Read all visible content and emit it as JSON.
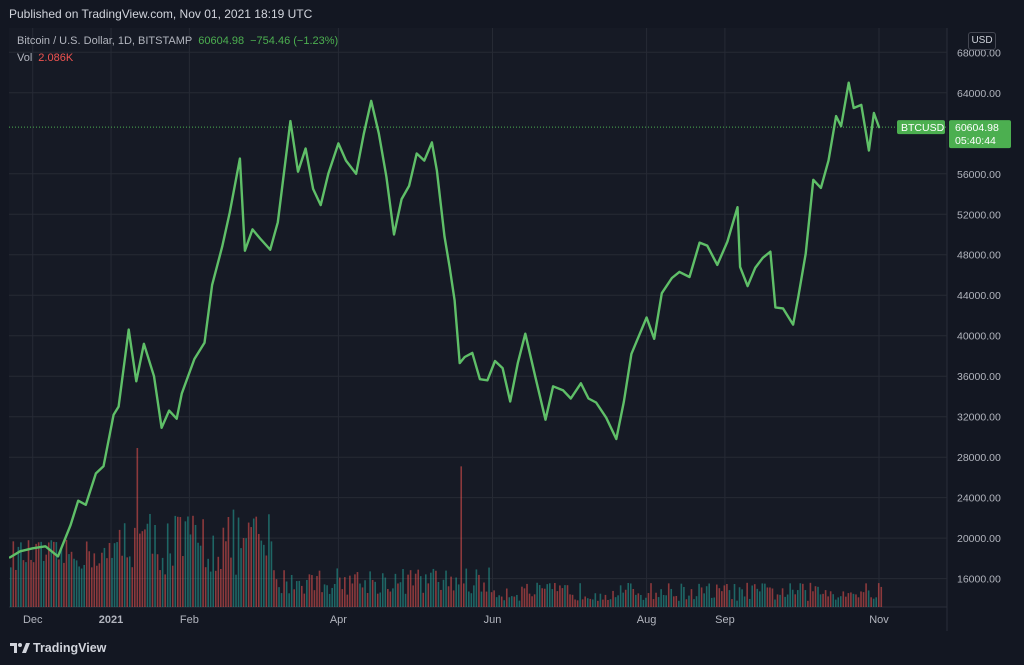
{
  "header": {
    "published": "Published on TradingView.com, Nov 01, 2021 18:19 UTC"
  },
  "legend": {
    "symbol": "Bitcoin / U.S. Dollar, 1D, BITSTAMP",
    "price": "60604.98",
    "change": "−754.46 (−1.23%)",
    "vol_label": "Vol",
    "vol_value": "2.086K"
  },
  "currency_button": "USD",
  "price_tag": {
    "symbol": "BTCUSD",
    "value": "60604.98",
    "countdown": "05:40:44"
  },
  "footer": {
    "brand": "TradingView"
  },
  "colors": {
    "line": "#5fbf68",
    "background": "#161a25",
    "grid": "#262a35",
    "up_volume": "#26a69a",
    "down_volume": "#ef5350",
    "last_price": "#4caf50"
  },
  "chart_data": {
    "type": "line",
    "series": [
      {
        "name": "BTCUSD",
        "x": [
          "2020-11-22",
          "2020-11-26",
          "2020-12-01",
          "2020-12-06",
          "2020-12-11",
          "2020-12-16",
          "2020-12-19",
          "2020-12-22",
          "2020-12-26",
          "2020-12-29",
          "2021-01-02",
          "2021-01-04",
          "2021-01-08",
          "2021-01-11",
          "2021-01-14",
          "2021-01-18",
          "2021-01-21",
          "2021-01-24",
          "2021-01-27",
          "2021-01-29",
          "2021-02-03",
          "2021-02-07",
          "2021-02-10",
          "2021-02-14",
          "2021-02-17",
          "2021-02-21",
          "2021-02-23",
          "2021-02-26",
          "2021-03-01",
          "2021-03-05",
          "2021-03-08",
          "2021-03-13",
          "2021-03-16",
          "2021-03-19",
          "2021-03-22",
          "2021-03-25",
          "2021-03-28",
          "2021-04-01",
          "2021-04-04",
          "2021-04-08",
          "2021-04-11",
          "2021-04-14",
          "2021-04-17",
          "2021-04-20",
          "2021-04-23",
          "2021-04-26",
          "2021-04-29",
          "2021-05-02",
          "2021-05-05",
          "2021-05-08",
          "2021-05-10",
          "2021-05-13",
          "2021-05-15",
          "2021-05-17",
          "2021-05-19",
          "2021-05-21",
          "2021-05-24",
          "2021-05-27",
          "2021-05-30",
          "2021-06-02",
          "2021-06-05",
          "2021-06-08",
          "2021-06-11",
          "2021-06-14",
          "2021-06-18",
          "2021-06-22",
          "2021-06-25",
          "2021-06-29",
          "2021-07-02",
          "2021-07-06",
          "2021-07-09",
          "2021-07-12",
          "2021-07-16",
          "2021-07-20",
          "2021-07-23",
          "2021-07-26",
          "2021-07-29",
          "2021-08-01",
          "2021-08-04",
          "2021-08-07",
          "2021-08-11",
          "2021-08-14",
          "2021-08-18",
          "2021-08-22",
          "2021-08-25",
          "2021-08-29",
          "2021-09-02",
          "2021-09-06",
          "2021-09-07",
          "2021-09-10",
          "2021-09-13",
          "2021-09-16",
          "2021-09-19",
          "2021-09-21",
          "2021-09-24",
          "2021-09-28",
          "2021-09-30",
          "2021-10-03",
          "2021-10-06",
          "2021-10-09",
          "2021-10-12",
          "2021-10-15",
          "2021-10-17",
          "2021-10-20",
          "2021-10-22",
          "2021-10-25",
          "2021-10-28",
          "2021-10-30",
          "2021-11-01"
        ],
        "y": [
          18100,
          18700,
          19000,
          19200,
          18200,
          21300,
          23700,
          23300,
          26400,
          27100,
          32200,
          33000,
          40600,
          35500,
          39200,
          36000,
          30900,
          32600,
          31800,
          34300,
          37700,
          39300,
          45000,
          48800,
          52200,
          57500,
          48400,
          50500,
          49600,
          48500,
          51200,
          61200,
          56200,
          58500,
          54500,
          52900,
          56000,
          59000,
          57300,
          56000,
          59900,
          63200,
          60000,
          55700,
          50000,
          53500,
          54800,
          58000,
          57300,
          59100,
          56300,
          49800,
          46800,
          43500,
          37300,
          37900,
          38300,
          35700,
          35600,
          37500,
          36800,
          33500,
          37300,
          40200,
          35900,
          31700,
          35000,
          34600,
          33800,
          35300,
          33800,
          33400,
          31900,
          29800,
          33500,
          38200,
          40000,
          41800,
          39700,
          44200,
          45700,
          46300,
          45800,
          49200,
          48900,
          47000,
          49300,
          52700,
          46800,
          44900,
          46700,
          47700,
          48300,
          42800,
          42700,
          41100,
          43800,
          48100,
          55400,
          54600,
          57300,
          61700,
          60700,
          65000,
          62500,
          62800,
          58300,
          62000,
          60605
        ]
      }
    ],
    "xaxis_labels": [
      "Dec",
      "2021",
      "Feb",
      "Apr",
      "Jun",
      "Aug",
      "Sep",
      "Nov"
    ],
    "yaxis_labels": [
      "68000.00",
      "64000.00",
      "56000.00",
      "52000.00",
      "48000.00",
      "44000.00",
      "40000.00",
      "36000.00",
      "32000.00",
      "28000.00",
      "24000.00",
      "20000.00",
      "16000.00"
    ],
    "ylim": [
      13200,
      70400
    ],
    "grid": true,
    "volume": {
      "highlighted": [
        {
          "date": "2021-01-11",
          "value": 2.6
        },
        {
          "date": "2021-05-19",
          "value": 2.3
        }
      ],
      "unit": "K"
    }
  }
}
